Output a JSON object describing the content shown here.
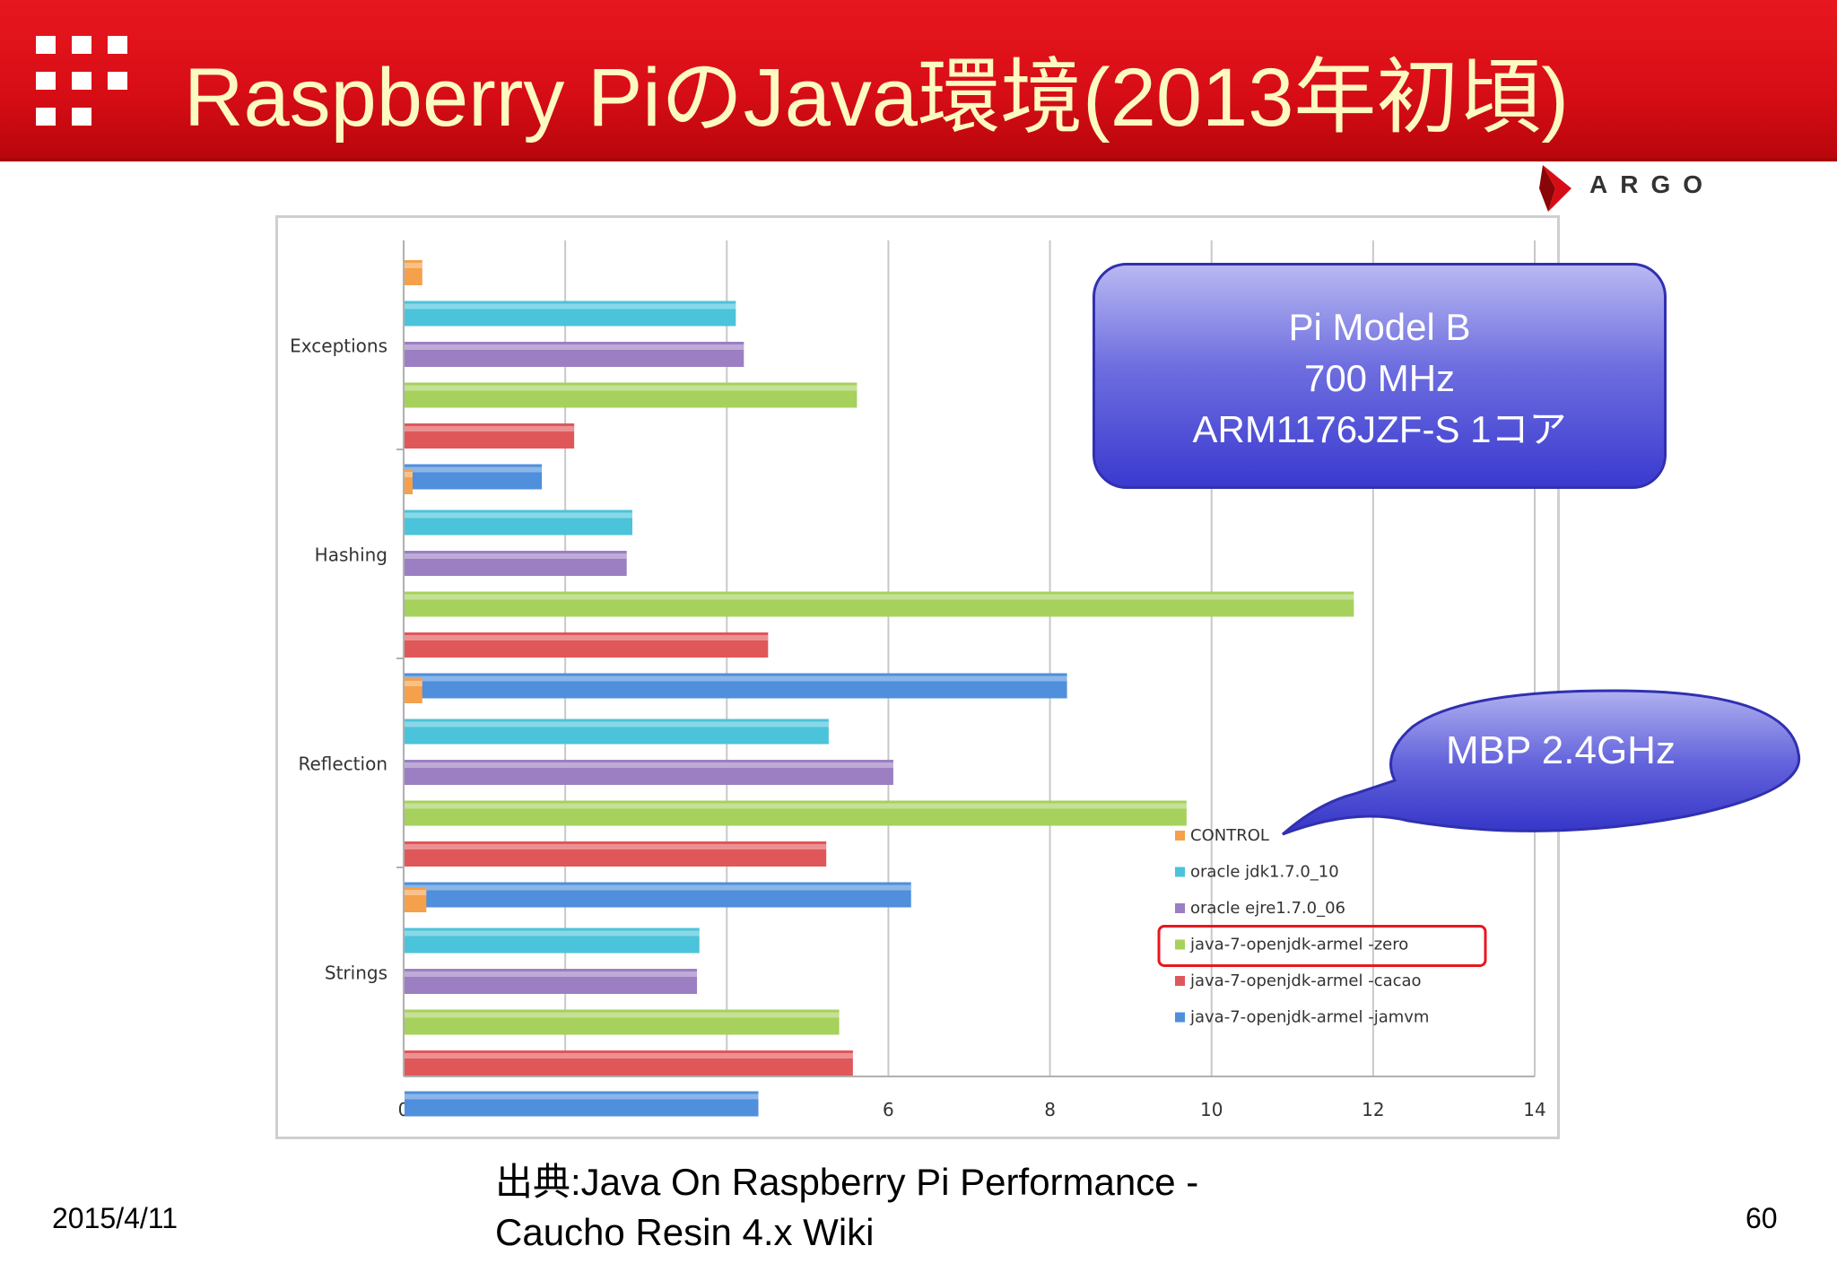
{
  "slide": {
    "title": "Raspberry PiのJava環境(2013年初頃)",
    "logo_text": "ARGO",
    "date": "2015/4/11",
    "source_line1": "出典:Java On Raspberry Pi Performance -",
    "source_line2": "Caucho Resin 4.x Wiki",
    "page_number": "60",
    "accent_color": "#d70d15",
    "title_text_color": "#fdf9c2"
  },
  "callout_box": {
    "lines": [
      "Pi Model B",
      "700 MHz",
      "ARM1176JZF-S 1コア"
    ]
  },
  "callout_bubble": {
    "text": "MBP 2.4GHz"
  },
  "chart_data": {
    "type": "bar",
    "orientation": "horizontal",
    "categories": [
      "Exceptions",
      "Hashing",
      "Reflection",
      "Strings"
    ],
    "xlim": [
      0,
      14
    ],
    "x_ticks": [
      0,
      2,
      4,
      6,
      8,
      10,
      12,
      14
    ],
    "grid": true,
    "legend_position": "bottom-right",
    "highlighted_series": "java-7-openjdk-armel -zero",
    "series": [
      {
        "name": "CONTROL",
        "color": "#f5a04a",
        "values": [
          0.22,
          0.1,
          0.22,
          0.27
        ]
      },
      {
        "name": "oracle jdk1.7.0_10",
        "color": "#4bc3da",
        "values": [
          4.1,
          2.82,
          5.25,
          3.65
        ]
      },
      {
        "name": "oracle ejre1.7.0_06",
        "color": "#9b7fc2",
        "values": [
          4.2,
          2.75,
          6.05,
          3.62
        ]
      },
      {
        "name": "java-7-openjdk-armel -zero",
        "color": "#a6d15c",
        "values": [
          5.6,
          11.75,
          9.68,
          5.38
        ]
      },
      {
        "name": "java-7-openjdk-armel -cacao",
        "color": "#e0575a",
        "values": [
          2.1,
          4.5,
          5.22,
          5.55
        ]
      },
      {
        "name": "java-7-openjdk-armel -jamvm",
        "color": "#4f8fdc",
        "values": [
          1.7,
          8.2,
          6.27,
          4.38
        ]
      }
    ]
  }
}
